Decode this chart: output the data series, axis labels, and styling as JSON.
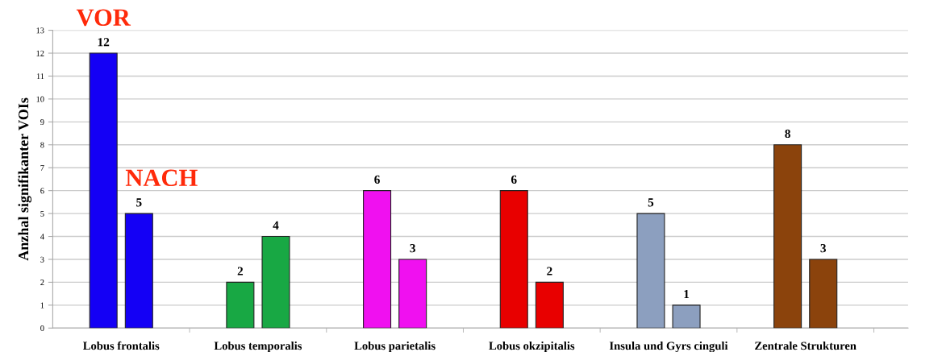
{
  "chart_data": {
    "type": "bar",
    "ylabel": "Anzhal signifikanter VOIs",
    "categories": [
      "Lobus frontalis",
      "Lobus temporalis",
      "Lobus parietalis",
      "Lobus okzipitalis",
      "Insula und Gyrs cinguli",
      "Zentrale Strukturen"
    ],
    "series": [
      {
        "name": "VOR",
        "colors": [
          "#1400f5",
          "#18a844",
          "#f010f0",
          "#e80000",
          "#8c9fbf",
          "#8b430c"
        ],
        "values": [
          12,
          2,
          6,
          6,
          5,
          8
        ]
      },
      {
        "name": "NACH",
        "colors": [
          "#1400f5",
          "#18a844",
          "#f010f0",
          "#e80000",
          "#8c9fbf",
          "#8b430c"
        ],
        "values": [
          5,
          4,
          3,
          2,
          1,
          3
        ]
      }
    ],
    "ylim": [
      0,
      13
    ],
    "yticks": [
      0,
      1,
      2,
      3,
      4,
      5,
      6,
      7,
      8,
      9,
      10,
      11,
      12,
      13
    ],
    "grid": "y",
    "legend": false,
    "data_labels": true
  }
}
